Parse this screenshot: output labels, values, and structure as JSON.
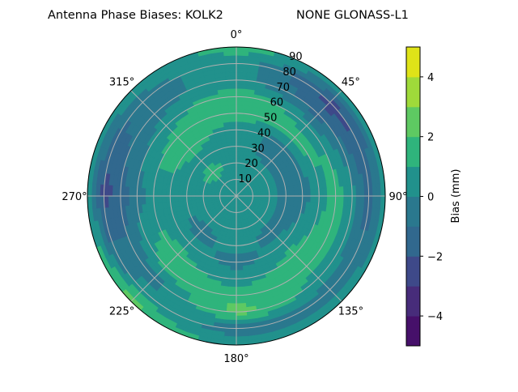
{
  "chart_data": {
    "type": "heatmap",
    "subtype": "polar-contour",
    "title_left": "Antenna Phase Biases: KOLK2",
    "title_right": "NONE GLONASS-L1",
    "theta_tick_labels": [
      "0°",
      "45°",
      "90°",
      "135°",
      "180°",
      "225°",
      "270°",
      "315°"
    ],
    "theta_direction": "clockwise",
    "theta_zero": "top",
    "radial_tick_labels": [
      "10",
      "20",
      "30",
      "40",
      "50",
      "60",
      "70",
      "80",
      "90"
    ],
    "radial_range": [
      0,
      90
    ],
    "grid": true,
    "colorbar": {
      "label": "Bias (mm)",
      "range": [
        -5,
        5
      ],
      "levels": [
        -5,
        -4,
        -3,
        -2,
        -1,
        0,
        1,
        2,
        3,
        4,
        5
      ],
      "tick_labels": [
        "−4",
        "−2",
        "0",
        "2",
        "4"
      ],
      "ticks": [
        -4,
        -2,
        0,
        2,
        4
      ],
      "colormap": "viridis",
      "colors": [
        "#46106a",
        "#472c7a",
        "#3e4989",
        "#31688e",
        "#2a788e",
        "#21918c",
        "#2fb47c",
        "#5ec962",
        "#9fda3a",
        "#dfe318"
      ]
    },
    "azimuths": [
      0,
      45,
      90,
      135,
      180,
      225,
      270,
      315
    ],
    "zeniths": [
      0,
      10,
      20,
      30,
      40,
      50,
      60,
      70,
      80,
      90
    ],
    "values": [
      [
        0.5,
        0.5,
        0.5,
        0.5,
        0.5,
        1.5,
        1.8,
        0.5,
        0.5,
        1.5
      ],
      [
        0.5,
        0.5,
        0.5,
        -0.5,
        -0.5,
        1.5,
        0.5,
        -1.5,
        -2.5,
        0.5
      ],
      [
        0.5,
        0.5,
        0.5,
        -0.5,
        -0.5,
        0.5,
        1.5,
        0.5,
        -1.5,
        0.5
      ],
      [
        0.5,
        0.5,
        0.5,
        -0.5,
        0.5,
        1.5,
        1.5,
        0.5,
        -0.5,
        0.5
      ],
      [
        0.5,
        0.5,
        0.5,
        0.5,
        -0.5,
        0.5,
        1.5,
        2.5,
        -0.5,
        0.5
      ],
      [
        0.5,
        0.5,
        0.5,
        -0.5,
        0.5,
        1.5,
        1.5,
        -0.5,
        0.5,
        2.5
      ],
      [
        0.5,
        0.5,
        0.5,
        0.5,
        0.5,
        0.5,
        -0.5,
        -1.5,
        -2.5,
        0.5
      ],
      [
        0.5,
        0.5,
        1.5,
        0.5,
        1.5,
        1.5,
        0.5,
        -0.5,
        -0.5,
        0.5
      ]
    ]
  }
}
